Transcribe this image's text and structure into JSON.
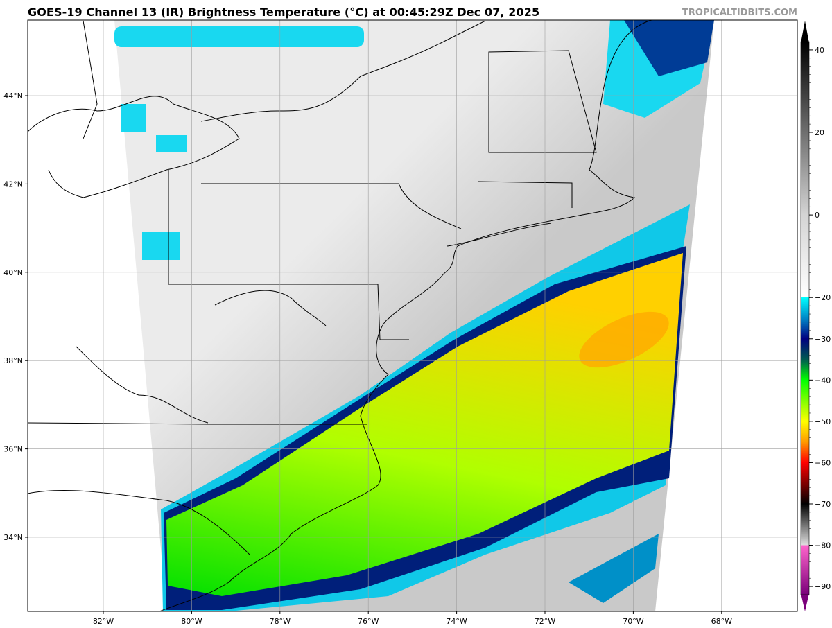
{
  "header": {
    "title": "GOES-19 Channel 13 (IR) Brightness Temperature (°C) at 00:45:29Z Dec 07, 2025",
    "brand": "TROPICALTIDBITS.COM"
  },
  "map": {
    "lon_labels": [
      "82°W",
      "80°W",
      "78°W",
      "76°W",
      "74°W",
      "72°W",
      "70°W",
      "68°W"
    ],
    "lat_labels": [
      "44°N",
      "42°N",
      "40°N",
      "38°N",
      "36°N",
      "34°N"
    ],
    "colors": {
      "swath_north": "#ebebeb",
      "swath_south": "#c9c9c9",
      "coast": "#000000",
      "grid": "#b0b0b0"
    }
  },
  "colorbar": {
    "tick_labels": [
      "40",
      "20",
      "0",
      "−20",
      "−30",
      "−40",
      "−50",
      "−60",
      "−70",
      "−80",
      "−90"
    ],
    "tick_values": [
      40,
      20,
      0,
      -20,
      -30,
      -40,
      -50,
      -60,
      -70,
      -80,
      -90
    ],
    "range": [
      -92,
      42
    ],
    "stops": [
      {
        "t": 42,
        "c": "#000000"
      },
      {
        "t": 0,
        "c": "#d4d4d4"
      },
      {
        "t": -20,
        "c": "#ffffff"
      },
      {
        "t": -20,
        "c": "#00ffff"
      },
      {
        "t": -25,
        "c": "#0088c8"
      },
      {
        "t": -30,
        "c": "#000080"
      },
      {
        "t": -35,
        "c": "#005a50"
      },
      {
        "t": -40,
        "c": "#00ff00"
      },
      {
        "t": -50,
        "c": "#ffff00"
      },
      {
        "t": -55,
        "c": "#ff9900"
      },
      {
        "t": -60,
        "c": "#ff0000"
      },
      {
        "t": -66,
        "c": "#660000"
      },
      {
        "t": -70,
        "c": "#000000"
      },
      {
        "t": -80,
        "c": "#e0e0e0"
      },
      {
        "t": -80,
        "c": "#ff66cc"
      },
      {
        "t": -92,
        "c": "#7a007a"
      }
    ]
  }
}
